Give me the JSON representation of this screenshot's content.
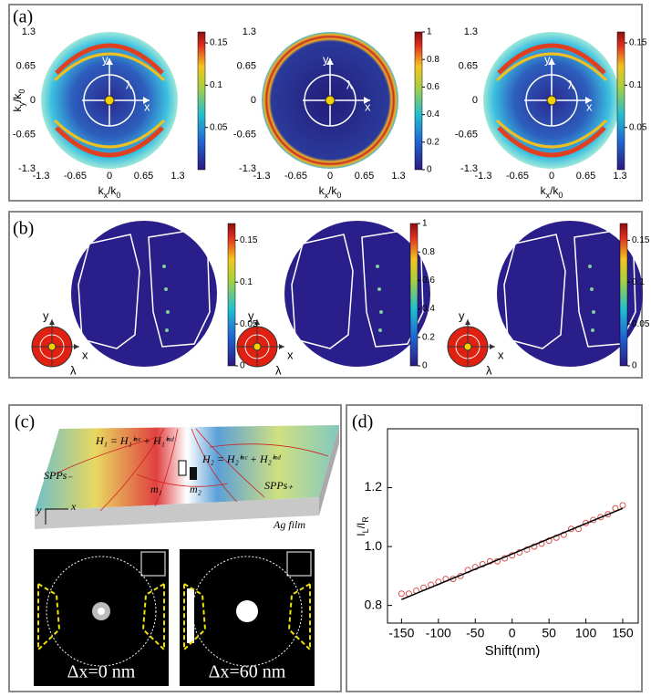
{
  "panel_a": {
    "label": "(a)",
    "xticks": [
      -1.3,
      -0.65,
      0,
      0.65,
      1.3
    ],
    "yticks": [
      -1.3,
      -0.65,
      0,
      0.65,
      1.3
    ],
    "xlabel": [
      "k",
      "x",
      "/k",
      "0"
    ],
    "ylabel": [
      "k",
      "y",
      "/k",
      "0"
    ],
    "axis_labels": [
      "y",
      "x",
      "λ"
    ],
    "colorbars": [
      {
        "lim": [
          0,
          0.163
        ],
        "ticks": [
          0.05,
          0.1,
          0.15
        ]
      },
      {
        "lim": [
          0,
          1
        ],
        "ticks": [
          0,
          0.2,
          0.4,
          0.6,
          0.8,
          1
        ]
      },
      {
        "lim": [
          0,
          0.163
        ],
        "ticks": [
          0.05,
          0.1,
          0.15
        ]
      }
    ]
  },
  "panel_b": {
    "label": "(b)",
    "axis_labels": [
      "y",
      "x",
      "λ"
    ],
    "colorbars": [
      {
        "lim": [
          0,
          0.17
        ],
        "ticks": [
          0,
          0.05,
          0.1,
          0.15
        ]
      },
      {
        "lim": [
          0,
          1
        ],
        "ticks": [
          0,
          0.2,
          0.4,
          0.6,
          0.8,
          1
        ]
      },
      {
        "lim": [
          0,
          0.17
        ],
        "ticks": [
          0,
          0.05,
          0.1,
          0.15
        ]
      }
    ]
  },
  "panel_c": {
    "label": "(c)",
    "eq1": "H₁ = H₁ⁱⁿᶜ + H₁ⁱⁿᵈ",
    "eq2": "H₂ = H₂ⁱⁿᶜ + H₂ⁱⁿᵈ",
    "spp_minus": "SPPs₋",
    "spp_plus": "SPPs₊",
    "m1": "m₁",
    "m2": "m₂",
    "material": "Ag film",
    "axis_y": "y",
    "axis_x": "x",
    "captions": [
      "Δx=0 nm",
      "Δx=60 nm"
    ]
  },
  "chart_data": {
    "type": "scatter",
    "label": "(d)",
    "xlabel": "Shift(nm)",
    "ylabel": [
      "I",
      "L",
      "/I",
      "R"
    ],
    "xlim": [
      -169,
      171
    ],
    "ylim": [
      0.74,
      1.4
    ],
    "xticks": [
      -150,
      -100,
      -50,
      0,
      50,
      100,
      150
    ],
    "yticks": [
      0.8,
      {
        "value": 1,
        "label": "1.0"
      },
      1.2
    ],
    "series": [
      {
        "type": "scatter",
        "color": "#d9534f",
        "x": [
          -150,
          -140,
          -130,
          -120,
          -110,
          -100,
          -90,
          -80,
          -70,
          -60,
          -50,
          -40,
          -30,
          -20,
          -10,
          0,
          10,
          20,
          30,
          40,
          50,
          60,
          70,
          80,
          90,
          100,
          110,
          120,
          130,
          140,
          150
        ],
        "values": [
          0.84,
          0.84,
          0.85,
          0.86,
          0.87,
          0.88,
          0.89,
          0.89,
          0.9,
          0.92,
          0.93,
          0.94,
          0.95,
          0.95,
          0.96,
          0.97,
          0.98,
          0.99,
          1.0,
          1.01,
          1.02,
          1.03,
          1.04,
          1.06,
          1.06,
          1.08,
          1.09,
          1.1,
          1.11,
          1.13,
          1.14
        ]
      },
      {
        "type": "line",
        "color": "#000000",
        "x": [
          -150,
          150
        ],
        "values": [
          0.82,
          1.13
        ]
      }
    ]
  }
}
